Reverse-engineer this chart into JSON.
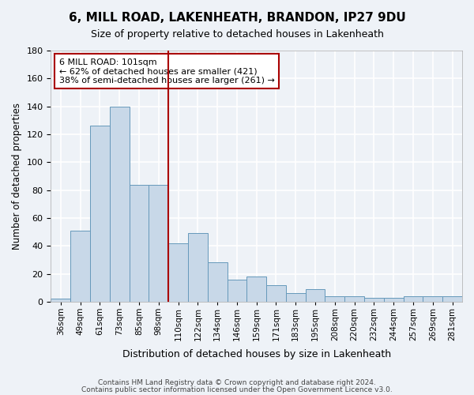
{
  "title": "6, MILL ROAD, LAKENHEATH, BRANDON, IP27 9DU",
  "subtitle": "Size of property relative to detached houses in Lakenheath",
  "xlabel": "Distribution of detached houses by size in Lakenheath",
  "ylabel": "Number of detached properties",
  "categories": [
    "36sqm",
    "49sqm",
    "61sqm",
    "73sqm",
    "85sqm",
    "98sqm",
    "110sqm",
    "122sqm",
    "134sqm",
    "146sqm",
    "159sqm",
    "171sqm",
    "183sqm",
    "195sqm",
    "208sqm",
    "220sqm",
    "232sqm",
    "244sqm",
    "257sqm",
    "269sqm",
    "281sqm"
  ],
  "values": [
    2,
    51,
    126,
    140,
    84,
    84,
    42,
    49,
    28,
    16,
    18,
    12,
    6,
    9,
    4,
    4,
    3,
    3,
    4,
    4,
    4
  ],
  "bar_color": "#c8d8e8",
  "bar_edge_color": "#6699bb",
  "vline_x": 5.5,
  "vline_color": "#aa0000",
  "annotation_title": "6 MILL ROAD: 101sqm",
  "annotation_line1": "← 62% of detached houses are smaller (421)",
  "annotation_line2": "38% of semi-detached houses are larger (261) →",
  "annotation_box_color": "#aa0000",
  "ylim": [
    0,
    180
  ],
  "yticks": [
    0,
    20,
    40,
    60,
    80,
    100,
    120,
    140,
    160,
    180
  ],
  "footer1": "Contains HM Land Registry data © Crown copyright and database right 2024.",
  "footer2": "Contains public sector information licensed under the Open Government Licence v3.0.",
  "bg_color": "#eef2f7",
  "plot_bg_color": "#eef2f7",
  "grid_color": "#ffffff"
}
